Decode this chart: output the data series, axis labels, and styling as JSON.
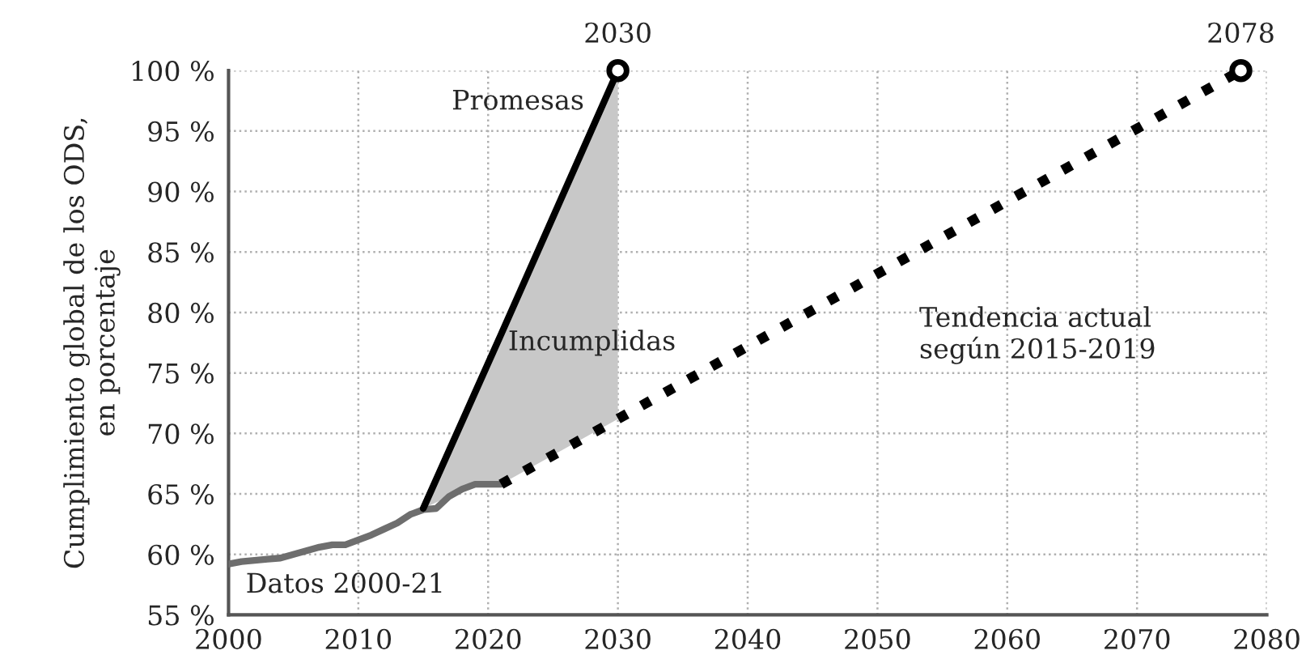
{
  "chart_data": {
    "type": "line",
    "ylabel": "Cumplimiento global de los ODS,\nen porcentaje",
    "xlim": [
      2000,
      2080
    ],
    "xticks": [
      2000,
      2010,
      2020,
      2030,
      2040,
      2050,
      2060,
      2070,
      2080
    ],
    "ylim": [
      55,
      100
    ],
    "yticks": [
      {
        "value": 55,
        "label": "55 %"
      },
      {
        "value": 60,
        "label": "60 %"
      },
      {
        "value": 65,
        "label": "65 %"
      },
      {
        "value": 70,
        "label": "70 %"
      },
      {
        "value": 75,
        "label": "75 %"
      },
      {
        "value": 80,
        "label": "80 %"
      },
      {
        "value": 85,
        "label": "85 %"
      },
      {
        "value": 90,
        "label": "90 %"
      },
      {
        "value": 95,
        "label": "95 %"
      },
      {
        "value": 100,
        "label": "100 %"
      }
    ],
    "grid": true,
    "series": [
      {
        "name": "Datos 2000-21",
        "color": "#6e6e6e",
        "line_style": "solid",
        "x": [
          2000,
          2001,
          2002,
          2003,
          2004,
          2005,
          2006,
          2007,
          2008,
          2009,
          2010,
          2011,
          2012,
          2013,
          2014,
          2015,
          2016,
          2017,
          2018,
          2019,
          2020,
          2021
        ],
        "values": [
          59.2,
          59.4,
          59.5,
          59.6,
          59.7,
          60.0,
          60.3,
          60.6,
          60.8,
          60.8,
          61.2,
          61.6,
          62.1,
          62.6,
          63.3,
          63.7,
          63.8,
          64.8,
          65.4,
          65.8,
          65.8,
          65.8
        ]
      },
      {
        "name": "Promesas",
        "color": "#000000",
        "line_style": "solid",
        "x": [
          2015,
          2017,
          2019,
          2021,
          2030
        ],
        "values": [
          63.8,
          68.6,
          73.4,
          78.2,
          100
        ],
        "lower": [
          63.8,
          64.8,
          65.8,
          65.8,
          71.2
        ],
        "upper": [
          63.8,
          68.6,
          73.4,
          78.2,
          100
        ]
      },
      {
        "name": "Tendencia actual\nsegún 2015-2019",
        "color": "#000000",
        "line_style": "dotted",
        "x": [
          2021,
          2078
        ],
        "values": [
          65.8,
          100
        ]
      },
      {
        "type": "scatter",
        "color": "#000000",
        "marker": "circle",
        "x": [
          2030,
          2078
        ],
        "values": [
          100,
          100
        ]
      }
    ],
    "annotations": [
      {
        "text": "2030",
        "x": 2030,
        "y": 100
      },
      {
        "text": "2078",
        "x": 2078,
        "y": 100
      },
      "Incumplidas"
    ]
  }
}
